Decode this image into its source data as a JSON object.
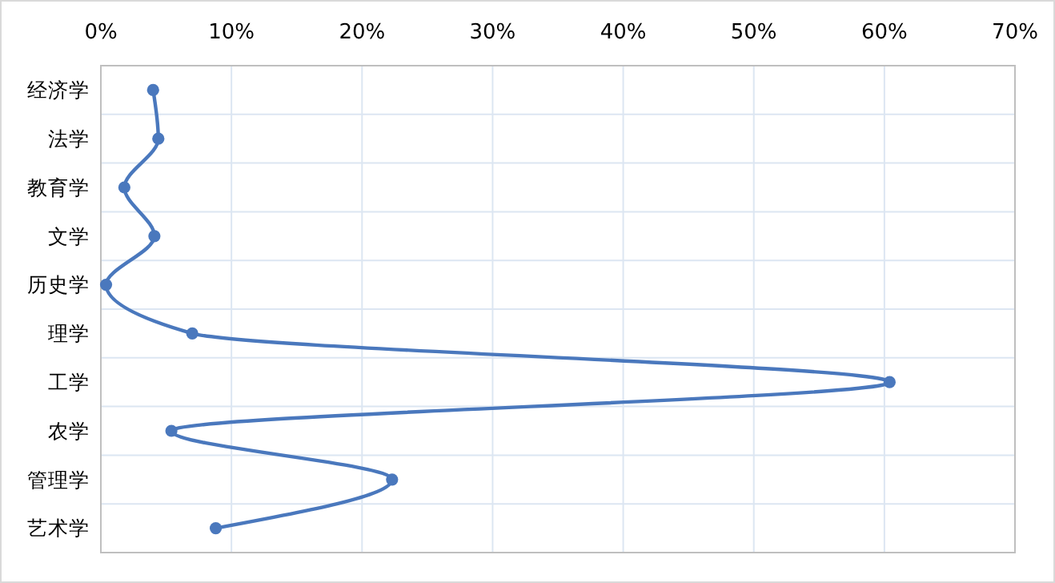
{
  "chart_data": {
    "type": "line",
    "orientation": "horizontal",
    "categories": [
      "经济学",
      "法学",
      "教育学",
      "文学",
      "历史学",
      "理学",
      "工学",
      "农学",
      "管理学",
      "艺术学"
    ],
    "series": [
      {
        "color": "#4a78bd",
        "values": [
          4.0,
          4.4,
          1.8,
          4.1,
          0.4,
          7.0,
          60.4,
          5.4,
          22.3,
          8.8
        ]
      }
    ],
    "xlim": [
      0,
      70
    ],
    "xticks": [
      {
        "value": 0,
        "label": "0%"
      },
      {
        "value": 10,
        "label": "10%"
      },
      {
        "value": 20,
        "label": "20%"
      },
      {
        "value": 30,
        "label": "30%"
      },
      {
        "value": 40,
        "label": "40%"
      },
      {
        "value": 50,
        "label": "50%"
      },
      {
        "value": 60,
        "label": "60%"
      },
      {
        "value": 70,
        "label": "70%"
      }
    ],
    "grid": true,
    "marker": "circle",
    "line_style": "solid"
  }
}
